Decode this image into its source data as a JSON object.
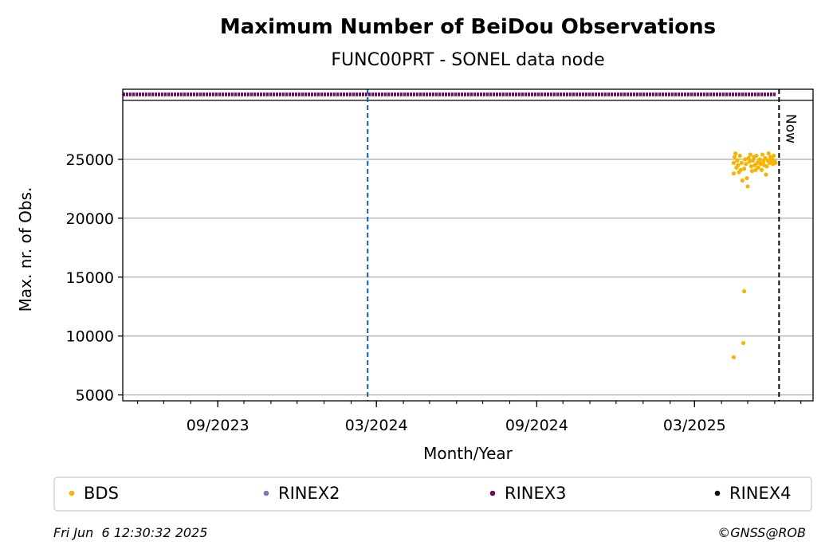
{
  "chart_data": {
    "type": "scatter",
    "title": "Maximum Number of BeiDou Observations",
    "subtitle": "FUNC00PRT - SONEL data node",
    "xlabel": "Month/Year",
    "ylabel": "Max. nr. of Obs.",
    "xlim": [
      "2023-05-15",
      "2025-07-15"
    ],
    "ylim": [
      4500,
      30000
    ],
    "x_ticks": [
      {
        "date": "2023-09-01",
        "label": "09/2023"
      },
      {
        "date": "2024-03-01",
        "label": "03/2024"
      },
      {
        "date": "2024-09-01",
        "label": "09/2024"
      },
      {
        "date": "2025-03-01",
        "label": "03/2025"
      }
    ],
    "y_ticks": [
      5000,
      10000,
      15000,
      20000,
      25000
    ],
    "grid": "horizontal",
    "vline_date": "2024-02-20",
    "now_date": "2025-06-06",
    "now_label": "Now",
    "rinex3_band": {
      "start": "2023-05-15",
      "end": "2025-06-03"
    },
    "series": [
      {
        "name": "BDS",
        "color": "#f7b500",
        "points": [
          [
            "2025-04-15",
            8200
          ],
          [
            "2025-04-15",
            23800
          ],
          [
            "2025-04-15",
            24700
          ],
          [
            "2025-04-16",
            25200
          ],
          [
            "2025-04-17",
            25500
          ],
          [
            "2025-04-18",
            24300
          ],
          [
            "2025-04-19",
            24900
          ],
          [
            "2025-04-20",
            24500
          ],
          [
            "2025-04-21",
            23900
          ],
          [
            "2025-04-22",
            25300
          ],
          [
            "2025-04-23",
            24100
          ],
          [
            "2025-04-24",
            24700
          ],
          [
            "2025-04-25",
            23200
          ],
          [
            "2025-04-26",
            9400
          ],
          [
            "2025-04-27",
            13800
          ],
          [
            "2025-04-27",
            24200
          ],
          [
            "2025-04-28",
            25000
          ],
          [
            "2025-04-29",
            24600
          ],
          [
            "2025-04-30",
            23400
          ],
          [
            "2025-05-01",
            22700
          ],
          [
            "2025-05-02",
            25100
          ],
          [
            "2025-05-03",
            24800
          ],
          [
            "2025-05-04",
            25400
          ],
          [
            "2025-05-05",
            24400
          ],
          [
            "2025-05-06",
            24000
          ],
          [
            "2025-05-07",
            24900
          ],
          [
            "2025-05-08",
            25200
          ],
          [
            "2025-05-09",
            24500
          ],
          [
            "2025-05-10",
            24100
          ],
          [
            "2025-05-11",
            25300
          ],
          [
            "2025-05-12",
            24700
          ],
          [
            "2025-05-13",
            24300
          ],
          [
            "2025-05-14",
            24800
          ],
          [
            "2025-05-15",
            25000
          ],
          [
            "2025-05-16",
            24600
          ],
          [
            "2025-05-17",
            24100
          ],
          [
            "2025-05-18",
            25400
          ],
          [
            "2025-05-19",
            24800
          ],
          [
            "2025-05-20",
            24500
          ],
          [
            "2025-05-21",
            25100
          ],
          [
            "2025-05-22",
            23700
          ],
          [
            "2025-05-23",
            24400
          ],
          [
            "2025-05-24",
            24900
          ],
          [
            "2025-05-25",
            25500
          ],
          [
            "2025-05-26",
            24700
          ],
          [
            "2025-05-27",
            25200
          ],
          [
            "2025-05-28",
            24900
          ],
          [
            "2025-05-29",
            25000
          ],
          [
            "2025-05-30",
            24600
          ],
          [
            "2025-05-31",
            25300
          ],
          [
            "2025-06-01",
            24800
          ],
          [
            "2025-06-02",
            24700
          ]
        ]
      }
    ],
    "legend": [
      {
        "label": "BDS",
        "color": "#f7b500"
      },
      {
        "label": "RINEX2",
        "color": "#7b78b8"
      },
      {
        "label": "RINEX3",
        "color": "#6a0a5e"
      },
      {
        "label": "RINEX4",
        "color": "#1e0a1a"
      }
    ],
    "legend_position": "bottom"
  },
  "footer": {
    "timestamp": "Fri Jun  6 12:30:32 2025",
    "credit": "©GNSS@ROB"
  }
}
